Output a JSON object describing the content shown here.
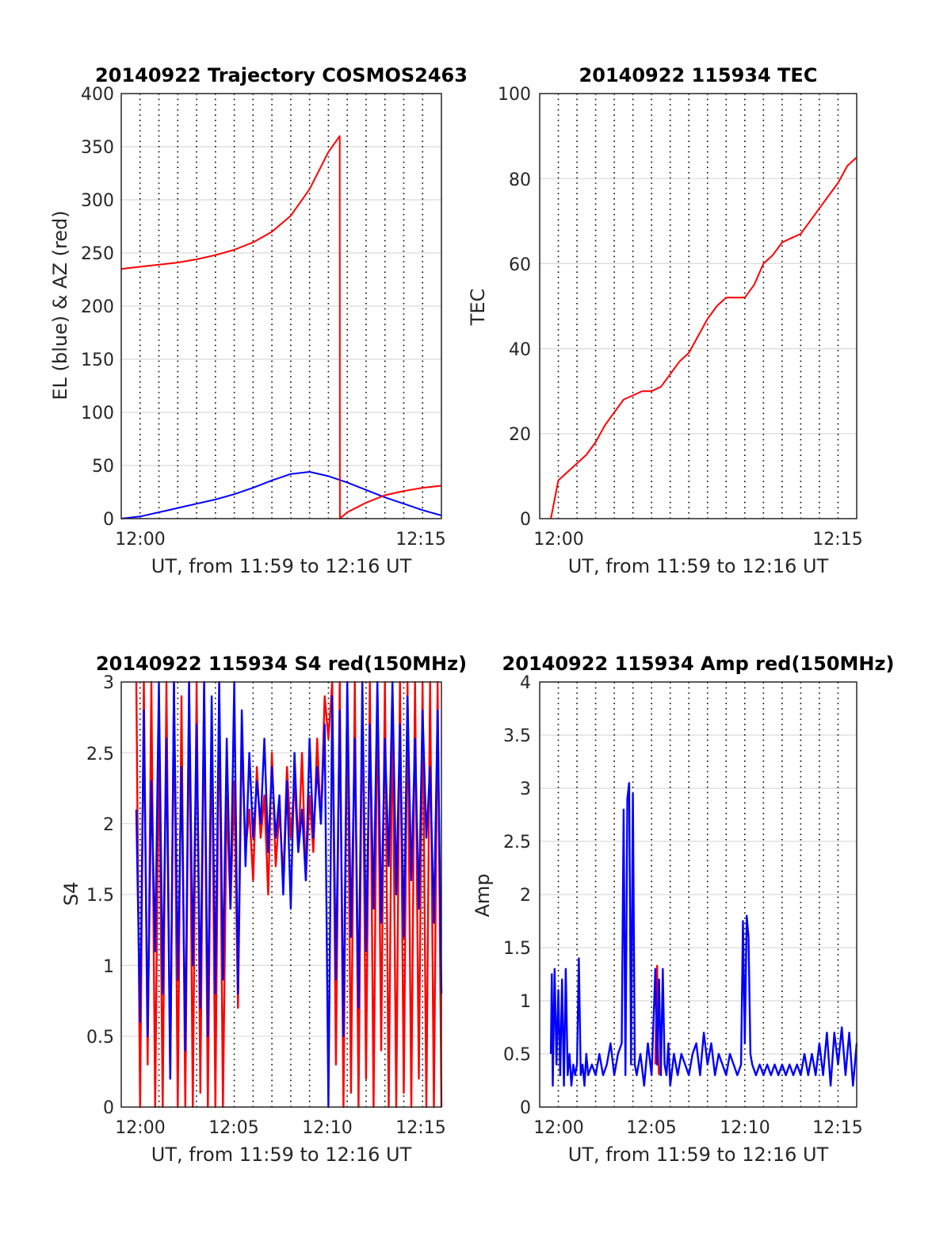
{
  "colors": {
    "el": "#0000ff",
    "az": "#ff0000",
    "tec": "#ff0000",
    "s4_red": "#ff0000",
    "s4_blue": "#0000ff",
    "amp_red": "#ff0000",
    "amp_blue": "#0000ff"
  },
  "chart_data": [
    {
      "type": "line",
      "title": "20140922 Trajectory COSMOS2463",
      "xlabel": "UT, from 11:59 to 12:16 UT",
      "ylabel": "EL (blue) & AZ (red)",
      "xlim": [
        "11:59",
        "12:16"
      ],
      "ylim": [
        0,
        400
      ],
      "x_ticks": [
        "12:00",
        "12:15"
      ],
      "y_ticks": [
        "0",
        "50",
        "100",
        "150",
        "200",
        "250",
        "300",
        "350",
        "400"
      ],
      "grid": true,
      "series": [
        {
          "key": "el",
          "color": "#0000ff",
          "x_minutes": [
            0,
            1,
            2,
            3,
            4,
            5,
            6,
            7,
            8,
            9,
            10,
            11,
            12,
            13,
            14,
            15,
            16,
            17
          ],
          "values": [
            0,
            2,
            6,
            10,
            14,
            18,
            23,
            29,
            36,
            42,
            44,
            40,
            34,
            27,
            20,
            14,
            8,
            3
          ]
        },
        {
          "key": "az",
          "color": "#ff0000",
          "x_minutes": [
            0,
            1,
            2,
            3,
            4,
            5,
            6,
            7,
            8,
            9,
            10,
            11,
            11.6,
            11.61,
            12,
            13,
            14,
            15,
            16,
            17
          ],
          "values": [
            235,
            237,
            239,
            241,
            244,
            248,
            253,
            260,
            270,
            285,
            310,
            345,
            360,
            0,
            6,
            15,
            22,
            26,
            29,
            31
          ]
        }
      ]
    },
    {
      "type": "line",
      "title": "20140922 115934 TEC",
      "xlabel": "UT, from 11:59 to 12:16 UT",
      "ylabel": "TEC",
      "xlim": [
        "11:59",
        "12:16"
      ],
      "ylim": [
        0,
        100
      ],
      "x_ticks": [
        "12:00",
        "12:15"
      ],
      "y_ticks": [
        "0",
        "20",
        "40",
        "60",
        "80",
        "100"
      ],
      "grid": true,
      "series": [
        {
          "key": "tec",
          "color": "#ff0000",
          "x_minutes": [
            0.6,
            1,
            1.5,
            2,
            2.5,
            3,
            3.5,
            4,
            4.5,
            5,
            5.5,
            6,
            6.5,
            7,
            7.5,
            8,
            8.5,
            9,
            9.5,
            10,
            10.5,
            11,
            11.5,
            12,
            12.5,
            13,
            13.5,
            14,
            14.5,
            15,
            15.5,
            16,
            16.5,
            17
          ],
          "values": [
            0,
            9,
            11,
            13,
            15,
            18,
            22,
            25,
            28,
            29,
            30,
            30,
            31,
            34,
            37,
            39,
            43,
            47,
            50,
            52,
            52,
            52,
            55,
            60,
            62,
            65,
            66,
            67,
            70,
            73,
            76,
            79,
            83,
            85
          ]
        }
      ]
    },
    {
      "type": "line",
      "title": "20140922 115934 S4 red(150MHz)",
      "xlabel": "UT, from 11:59 to 12:16 UT",
      "ylabel": "S4",
      "xlim": [
        "11:59",
        "12:16"
      ],
      "ylim": [
        0,
        3
      ],
      "x_ticks": [
        "12:00",
        "12:05",
        "12:10",
        "12:15"
      ],
      "y_ticks": [
        "0",
        "0.5",
        "1",
        "1.5",
        "2",
        "2.5",
        "3"
      ],
      "grid": true,
      "series": [
        {
          "key": "s4_red",
          "color": "#ff0000",
          "x_minutes": [
            0.8,
            1.0,
            1.2,
            1.4,
            1.6,
            1.8,
            2.0,
            2.2,
            2.4,
            2.6,
            2.8,
            3.0,
            3.2,
            3.4,
            3.6,
            3.8,
            4.0,
            4.2,
            4.4,
            4.6,
            4.8,
            5.0,
            5.2,
            5.4,
            5.6,
            5.8,
            6.0,
            6.2,
            6.4,
            6.6,
            6.8,
            7.0,
            7.2,
            7.4,
            7.6,
            7.8,
            8.0,
            8.2,
            8.4,
            8.6,
            8.8,
            9.0,
            9.2,
            9.4,
            9.6,
            9.8,
            10.0,
            10.2,
            10.4,
            10.6,
            10.8,
            11.0,
            11.2,
            11.4,
            11.6,
            11.8,
            12.0,
            12.2,
            12.4,
            12.6,
            12.8,
            13.0,
            13.2,
            13.4,
            13.6,
            13.8,
            14.0,
            14.2,
            14.4,
            14.6,
            14.8,
            15.0,
            15.2,
            15.4,
            15.6,
            15.8,
            16.0,
            16.2,
            16.4,
            16.6,
            16.8,
            17.0
          ],
          "values": [
            3,
            0,
            3,
            0.3,
            3,
            0,
            2.6,
            0,
            3,
            0.2,
            3,
            0,
            2.9,
            0,
            3,
            0,
            3,
            0.1,
            3,
            0,
            2.8,
            0,
            3,
            0,
            2.2,
            1.4,
            2.3,
            0.7,
            2.6,
            1.8,
            2.1,
            1.6,
            2.4,
            1.9,
            2.2,
            1.5,
            2.5,
            1.7,
            2.1,
            1.6,
            2.4,
            1.9,
            2.3,
            1.8,
            2.5,
            1.6,
            2.2,
            1.8,
            2.6,
            2.0,
            2.9,
            2.6,
            3,
            0.3,
            3,
            0,
            3,
            0.1,
            3,
            0,
            3,
            0.2,
            3,
            0,
            3,
            0.4,
            3,
            0,
            2.9,
            0,
            3,
            0.1,
            3,
            0,
            3,
            0.2,
            3,
            0,
            3,
            0,
            3,
            0
          ]
        },
        {
          "key": "s4_blue",
          "color": "#0000ff",
          "x_minutes": [
            0.8,
            1.0,
            1.2,
            1.4,
            1.6,
            1.8,
            2.0,
            2.2,
            2.4,
            2.6,
            2.8,
            3.0,
            3.2,
            3.4,
            3.6,
            3.8,
            4.0,
            4.2,
            4.4,
            4.6,
            4.8,
            5.0,
            5.2,
            5.4,
            5.6,
            5.8,
            6.0,
            6.2,
            6.4,
            6.6,
            6.8,
            7.0,
            7.2,
            7.4,
            7.6,
            7.8,
            8.0,
            8.2,
            8.4,
            8.6,
            8.8,
            9.0,
            9.2,
            9.4,
            9.6,
            9.8,
            10.0,
            10.2,
            10.4,
            10.6,
            10.8,
            11.0,
            11.2,
            11.4,
            11.6,
            11.8,
            12.0,
            12.2,
            12.4,
            12.6,
            12.8,
            13.0,
            13.2,
            13.4,
            13.6,
            13.8,
            14.0,
            14.2,
            14.4,
            14.6,
            14.8,
            15.0,
            15.2,
            15.4,
            15.6,
            15.8,
            16.0,
            16.2,
            16.4,
            16.6,
            16.8,
            17.0
          ],
          "values": [
            2.1,
            0.6,
            2.8,
            0.5,
            2.3,
            1.1,
            3,
            0.8,
            2.6,
            0.2,
            3,
            0.9,
            2.4,
            0.4,
            3,
            1.0,
            2.7,
            0.7,
            3,
            0.5,
            2.9,
            0.8,
            3,
            0.9,
            2.6,
            1.4,
            3,
            0.8,
            2.8,
            1.7,
            2.5,
            1.9,
            2.3,
            2.0,
            2.6,
            1.8,
            2.4,
            1.9,
            2.2,
            1.5,
            2.3,
            1.4,
            2.5,
            1.8,
            2.1,
            1.6,
            2.6,
            1.9,
            2.4,
            2.0,
            2.7,
            0,
            2.9,
            0.9,
            2.8,
            0.5,
            3,
            1.2,
            2.6,
            0.7,
            3,
            1.1,
            2.7,
            1.4,
            3,
            1.3,
            2.6,
            1.7,
            3,
            1.5,
            2.7,
            1.2,
            2.9,
            1.6,
            2.6,
            1.4,
            2.8,
            1.9,
            2.4,
            1.3,
            2.8,
            0.8
          ]
        }
      ]
    },
    {
      "type": "line",
      "title": "20140922 115934 Amp red(150MHz)",
      "xlabel": "UT, from 11:59 to 12:16 UT",
      "ylabel": "Amp",
      "xlim": [
        "11:59",
        "12:16"
      ],
      "ylim": [
        0,
        4
      ],
      "x_ticks": [
        "12:00",
        "12:05",
        "12:10",
        "12:15"
      ],
      "y_ticks": [
        "0",
        "0.5",
        "1",
        "1.5",
        "2",
        "2.5",
        "3",
        "3.5",
        "4"
      ],
      "grid": true,
      "series": [
        {
          "key": "amp_red",
          "color": "#ff0000",
          "x_minutes": [
            6.2,
            6.3,
            6.35,
            6.4
          ],
          "values": [
            0.4,
            1.33,
            0.5,
            0.3
          ]
        },
        {
          "key": "amp_blue",
          "color": "#0000ff",
          "x_minutes": [
            0.6,
            0.65,
            0.7,
            0.8,
            0.9,
            1.0,
            1.1,
            1.2,
            1.3,
            1.4,
            1.5,
            1.6,
            1.7,
            1.8,
            1.9,
            2.0,
            2.1,
            2.2,
            2.3,
            2.4,
            2.5,
            2.6,
            2.8,
            3.0,
            3.2,
            3.4,
            3.6,
            3.8,
            4.0,
            4.2,
            4.4,
            4.5,
            4.6,
            4.7,
            4.8,
            4.9,
            5.0,
            5.1,
            5.2,
            5.4,
            5.6,
            5.8,
            6.0,
            6.2,
            6.3,
            6.4,
            6.5,
            6.6,
            6.7,
            6.8,
            6.9,
            7.0,
            7.2,
            7.4,
            7.6,
            7.8,
            8.0,
            8.2,
            8.4,
            8.6,
            8.8,
            9.0,
            9.2,
            9.4,
            9.6,
            9.8,
            10.0,
            10.2,
            10.4,
            10.6,
            10.8,
            10.9,
            11.0,
            11.1,
            11.2,
            11.3,
            11.4,
            11.6,
            11.8,
            12.0,
            12.2,
            12.4,
            12.6,
            12.8,
            13.0,
            13.2,
            13.4,
            13.6,
            13.8,
            14.0,
            14.2,
            14.4,
            14.6,
            14.8,
            15.0,
            15.2,
            15.4,
            15.6,
            15.8,
            16.0,
            16.2,
            16.4,
            16.6,
            16.8,
            17.0
          ],
          "values": [
            0.5,
            1.25,
            0.2,
            1.3,
            0.4,
            1.1,
            0.3,
            1.2,
            0.2,
            1.3,
            0.3,
            0.5,
            0.2,
            0.4,
            0.3,
            0.4,
            1.4,
            0.3,
            0.4,
            0.2,
            0.5,
            0.3,
            0.4,
            0.3,
            0.5,
            0.3,
            0.4,
            0.6,
            0.3,
            0.5,
            0.6,
            2.8,
            0.3,
            2.9,
            3.05,
            0.4,
            2.95,
            0.4,
            0.3,
            0.5,
            0.2,
            0.6,
            0.3,
            1.3,
            0.4,
            1.2,
            0.3,
            1.3,
            0.4,
            0.3,
            0.6,
            0.2,
            0.5,
            0.3,
            0.5,
            0.4,
            0.3,
            0.5,
            0.6,
            0.3,
            0.7,
            0.4,
            0.6,
            0.3,
            0.5,
            0.4,
            0.3,
            0.5,
            0.4,
            0.3,
            0.4,
            1.75,
            0.6,
            1.8,
            1.6,
            0.5,
            0.4,
            0.3,
            0.4,
            0.3,
            0.4,
            0.3,
            0.4,
            0.3,
            0.4,
            0.3,
            0.4,
            0.3,
            0.4,
            0.3,
            0.5,
            0.3,
            0.5,
            0.3,
            0.6,
            0.3,
            0.7,
            0.2,
            0.7,
            0.4,
            0.75,
            0.3,
            0.7,
            0.2,
            0.6
          ]
        }
      ]
    }
  ]
}
